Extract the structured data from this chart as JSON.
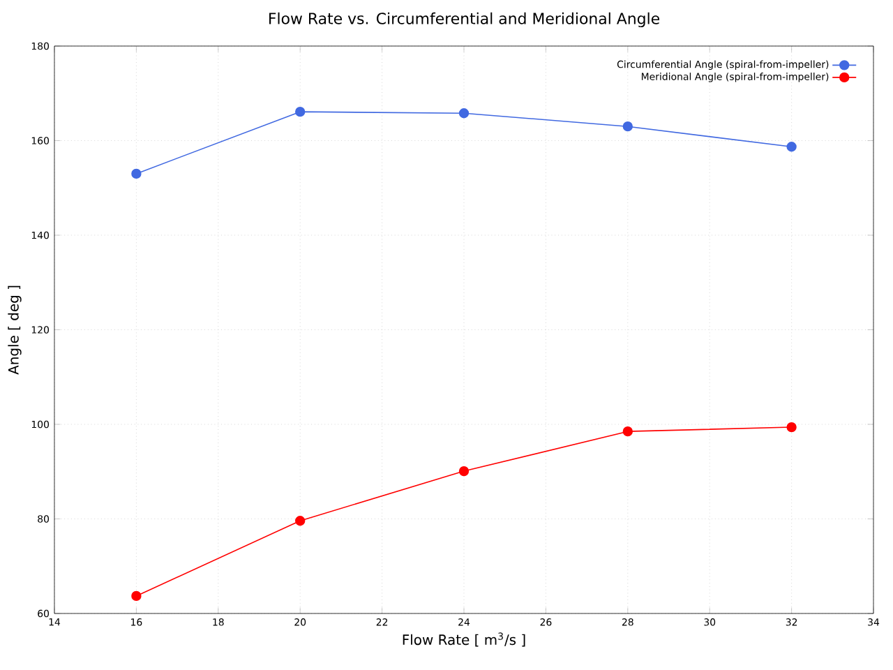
{
  "chart_data": {
    "type": "line",
    "title": "Flow Rate vs. Circumferential and Meridional Angle",
    "xlabel": "Flow Rate [ m$^{3}$/s ]",
    "ylabel": "Angle [ deg ]",
    "x": [
      16,
      20,
      24,
      28,
      32
    ],
    "series": [
      {
        "name": "Circumferential Angle (spiral-from-impeller)",
        "color": "#4169e1",
        "values": [
          153.0,
          166.1,
          165.8,
          163.0,
          158.7
        ]
      },
      {
        "name": "Meridional Angle (spiral-from-impeller)",
        "color": "#ff0000",
        "values": [
          63.7,
          79.6,
          90.1,
          98.5,
          99.4
        ]
      }
    ],
    "xlim": [
      14,
      34
    ],
    "ylim": [
      60,
      180
    ],
    "xticks": [
      14,
      16,
      18,
      20,
      22,
      24,
      26,
      28,
      30,
      32,
      34
    ],
    "yticks": [
      60,
      80,
      100,
      120,
      140,
      160,
      180
    ],
    "grid": true,
    "legend": "top right",
    "marker": "circle",
    "line_style": "solid"
  }
}
